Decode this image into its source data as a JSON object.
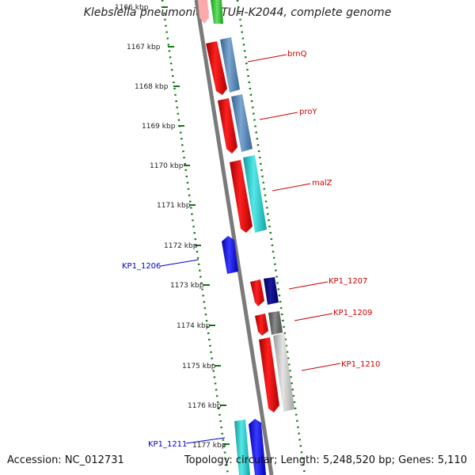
{
  "header": {
    "title": "Klebsiella pneumoniae NTUH-K2044, complete genome"
  },
  "footer": {
    "accession": "Accession: NC_012731",
    "summary": "Topology: circular; Length: 5,248,520 bp; Genes: 5,110"
  },
  "scale": {
    "tick_labels": [
      "1166 kbp",
      "1167 kbp",
      "1168 kbp",
      "1169 kbp",
      "1170 kbp",
      "1171 kbp",
      "1172 kbp",
      "1173 kbp",
      "1174 kbp",
      "1175 kbp",
      "1176 kbp",
      "1177 kbp"
    ]
  },
  "genes": {
    "brnQ": "brnQ",
    "proY": "proY",
    "malZ": "malZ",
    "kp1_1207": "KP1_1207",
    "kp1_1209": "KP1_1209",
    "kp1_1210": "KP1_1210",
    "kp1_1206": "KP1_1206",
    "kp1_1211": "KP1_1211"
  },
  "colors": {
    "plus_label": "#cc0000",
    "minus_label": "#0000cc",
    "red_track": "#ee0000",
    "steel_blue": "#4f81b4",
    "cyan": "#22cccc",
    "blue": "#1010ee",
    "navy": "#000080",
    "dark_gray": "#666666",
    "light_gray": "#c0c0c0",
    "backbone": "#7a7a7a",
    "ticks": "#117711"
  }
}
